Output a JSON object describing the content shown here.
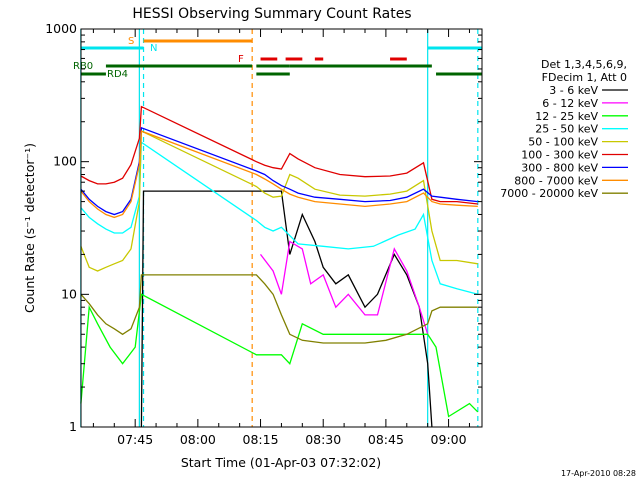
{
  "chart_data": {
    "type": "line",
    "title": "HESSI Observing Summary Count Rates",
    "xlabel": "Start Time (01-Apr-03 07:32:02)",
    "ylabel": "Count Rate (s⁻¹ detector⁻¹)",
    "y_scale": "log",
    "ylim": [
      1,
      1000
    ],
    "xlim": [
      "07:32:02",
      "09:08:00"
    ],
    "x_tick_labels": [
      "07:45",
      "08:00",
      "08:15",
      "08:30",
      "08:45",
      "09:00"
    ],
    "y_tick_labels": [
      "1",
      "10",
      "100",
      "1000"
    ],
    "legend_header": [
      "Det 1,3,4,5,6,9,",
      "FDecim 1, Att 0"
    ],
    "legend_position": "right",
    "timestamp": "17-Apr-2010 08:28",
    "flag_labels": {
      "saa": "S",
      "night": "N",
      "flare": "F",
      "rb0": "RB0",
      "rd4": "RD4"
    },
    "flags": [
      {
        "label": "S",
        "color": "#ff8c00",
        "segments": [
          [
            "07:47",
            "08:13"
          ]
        ]
      },
      {
        "label": "N",
        "color": "#00e5ee",
        "segments": [
          [
            "07:32",
            "07:47"
          ],
          [
            "08:55",
            "09:08"
          ]
        ]
      },
      {
        "label": "F",
        "color": "#e00000",
        "dashed": true,
        "segments": [
          [
            "08:15",
            "08:19"
          ],
          [
            "08:21",
            "08:25"
          ],
          [
            "08:28",
            "08:30"
          ],
          [
            "08:46",
            "08:50"
          ]
        ]
      },
      {
        "label": "RB0",
        "color": "#006400",
        "segments": [
          [
            "07:38",
            "08:13"
          ],
          [
            "08:14",
            "08:22"
          ],
          [
            "08:22",
            "08:56"
          ]
        ]
      },
      {
        "label": "RD4",
        "color": "#006400",
        "segments": [
          [
            "07:32",
            "07:38"
          ],
          [
            "08:14",
            "08:22"
          ],
          [
            "08:57",
            "09:08"
          ]
        ]
      }
    ],
    "cyan_lines": [
      "07:32",
      "07:46",
      "08:55"
    ],
    "cyan_dashed_lines": [
      "07:47",
      "09:07"
    ],
    "orange_dashed_lines": [
      "08:13"
    ],
    "series": [
      {
        "name": "3 - 6 keV",
        "color": "#000000",
        "x": [
          "07:46:30",
          "07:47:00",
          "08:20",
          "08:22",
          "08:25",
          "08:28",
          "08:30",
          "08:33",
          "08:36",
          "08:40",
          "08:43",
          "08:47",
          "08:50",
          "08:53",
          "08:55",
          "08:56"
        ],
        "y": [
          1,
          60,
          60,
          20,
          40,
          25,
          16,
          12,
          14,
          8,
          10,
          20,
          14,
          8,
          3,
          1
        ]
      },
      {
        "name": "6 - 12 keV",
        "color": "#ff00ff",
        "x": [
          "08:15",
          "08:18",
          "08:20",
          "08:22",
          "08:25",
          "08:27",
          "08:30",
          "08:33",
          "08:36",
          "08:40",
          "08:43",
          "08:47",
          "08:50",
          "08:53",
          "08:55"
        ],
        "y": [
          20,
          15,
          10,
          25,
          22,
          12,
          14,
          8,
          10,
          7,
          7,
          22,
          15,
          8,
          5
        ]
      },
      {
        "name": "12 - 25 keV",
        "color": "#00ff00",
        "x": [
          "07:32",
          "07:34",
          "07:36",
          "07:39",
          "07:42",
          "07:45",
          "07:46:30",
          "08:14",
          "08:17",
          "08:20",
          "08:22",
          "08:25",
          "08:30",
          "08:35",
          "08:40",
          "08:45",
          "08:50",
          "08:55",
          "08:57",
          "09:00",
          "09:05",
          "09:07"
        ],
        "y": [
          1.5,
          8,
          6,
          4,
          3,
          4,
          10,
          3.5,
          3.5,
          3.5,
          3,
          6,
          5,
          5,
          5,
          5,
          5,
          5,
          4,
          1.2,
          1.5,
          1.3
        ]
      },
      {
        "name": "25 - 50 keV",
        "color": "#00ffff",
        "x": [
          "07:32",
          "07:34",
          "07:36",
          "07:38",
          "07:40",
          "07:42",
          "07:44",
          "07:46",
          "07:46:30",
          "08:14",
          "08:16",
          "08:18",
          "08:20",
          "08:24",
          "08:30",
          "08:36",
          "08:42",
          "08:48",
          "08:52",
          "08:54",
          "08:56",
          "08:58",
          "09:02",
          "09:07"
        ],
        "y": [
          45,
          38,
          34,
          31,
          29,
          29,
          32,
          55,
          140,
          36,
          32,
          30,
          32,
          24,
          23,
          22,
          23,
          28,
          31,
          40,
          18,
          12,
          11,
          10
        ]
      },
      {
        "name": "50 - 100 keV",
        "color": "#c8c800",
        "x": [
          "07:32",
          "07:34",
          "07:36",
          "07:38",
          "07:40",
          "07:42",
          "07:44",
          "07:46",
          "07:46:30",
          "08:14",
          "08:16",
          "08:18",
          "08:20",
          "08:22",
          "08:24",
          "08:28",
          "08:34",
          "08:40",
          "08:46",
          "08:50",
          "08:54",
          "08:56",
          "08:58",
          "09:02",
          "09:07"
        ],
        "y": [
          23,
          16,
          15,
          16,
          17,
          18,
          22,
          50,
          170,
          65,
          58,
          54,
          55,
          80,
          75,
          62,
          56,
          55,
          57,
          60,
          72,
          30,
          18,
          18,
          17
        ]
      },
      {
        "name": "100 - 300 keV",
        "color": "#e00000",
        "x": [
          "07:32",
          "07:34",
          "07:36",
          "07:38",
          "07:40",
          "07:42",
          "07:44",
          "07:46",
          "07:46:30",
          "08:14",
          "08:16",
          "08:18",
          "08:20",
          "08:22",
          "08:24",
          "08:28",
          "08:34",
          "08:40",
          "08:46",
          "08:50",
          "08:54",
          "08:56",
          "08:58",
          "09:02",
          "09:07"
        ],
        "y": [
          78,
          72,
          68,
          68,
          70,
          75,
          95,
          150,
          260,
          100,
          94,
          90,
          88,
          115,
          105,
          90,
          80,
          77,
          78,
          82,
          98,
          52,
          50,
          50,
          48
        ]
      },
      {
        "name": "300 - 800 keV",
        "color": "#0000ff",
        "x": [
          "07:32",
          "07:34",
          "07:36",
          "07:38",
          "07:40",
          "07:42",
          "07:44",
          "07:46",
          "07:46:30",
          "08:14",
          "08:16",
          "08:18",
          "08:20",
          "08:22",
          "08:24",
          "08:28",
          "08:34",
          "08:40",
          "08:46",
          "08:50",
          "08:54",
          "08:56",
          "08:58",
          "09:02",
          "09:07"
        ],
        "y": [
          62,
          52,
          46,
          42,
          40,
          42,
          52,
          100,
          180,
          85,
          80,
          72,
          66,
          62,
          58,
          54,
          52,
          50,
          51,
          54,
          62,
          55,
          54,
          52,
          50
        ]
      },
      {
        "name": "800 - 7000 keV",
        "color": "#ff8c00",
        "x": [
          "07:32",
          "07:34",
          "07:36",
          "07:38",
          "07:40",
          "07:42",
          "07:44",
          "07:46",
          "07:46:30",
          "08:14",
          "08:16",
          "08:18",
          "08:20",
          "08:22",
          "08:24",
          "08:28",
          "08:34",
          "08:40",
          "08:46",
          "08:50",
          "08:54",
          "08:56",
          "08:58",
          "09:02",
          "09:07"
        ],
        "y": [
          60,
          50,
          44,
          40,
          38,
          40,
          50,
          95,
          170,
          80,
          74,
          68,
          62,
          57,
          54,
          50,
          48,
          46,
          48,
          50,
          58,
          50,
          48,
          47,
          46
        ]
      },
      {
        "name": "7000 - 20000 keV",
        "color": "#808000",
        "x": [
          "07:32",
          "07:34",
          "07:36",
          "07:38",
          "07:40",
          "07:42",
          "07:44",
          "07:46",
          "07:46:30",
          "08:14",
          "08:16",
          "08:18",
          "08:20",
          "08:22",
          "08:25",
          "08:30",
          "08:35",
          "08:40",
          "08:45",
          "08:50",
          "08:55",
          "08:56",
          "08:58",
          "09:02",
          "09:07"
        ],
        "y": [
          10,
          8.5,
          7,
          6,
          5.5,
          5,
          5.5,
          8,
          14,
          14,
          12,
          10,
          7,
          5,
          4.5,
          4.3,
          4.3,
          4.3,
          4.5,
          5,
          6,
          7.5,
          8,
          8,
          8
        ]
      }
    ]
  }
}
